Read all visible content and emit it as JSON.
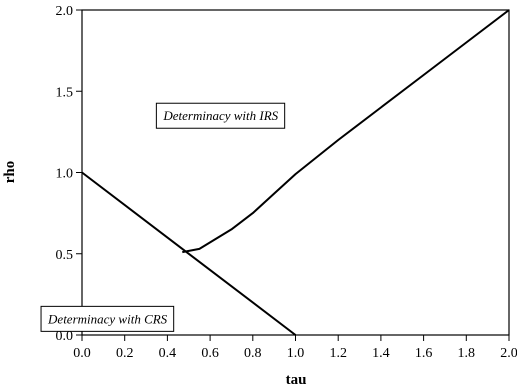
{
  "chart_data": {
    "type": "line",
    "title": "",
    "xlabel": "tau",
    "ylabel": "rho",
    "xlim": [
      0.0,
      2.0
    ],
    "ylim": [
      0.0,
      2.0
    ],
    "x_ticks": [
      "0.0",
      "0.2",
      "0.4",
      "0.6",
      "0.8",
      "1.0",
      "1.2",
      "1.4",
      "1.6",
      "1.8",
      "2.0"
    ],
    "y_ticks": [
      "0.0",
      "0.5",
      "1.0",
      "1.5",
      "2.0"
    ],
    "grid": false,
    "series": [
      {
        "values": [
          [
            0.0,
            1.0
          ],
          [
            0.5,
            0.5
          ],
          [
            1.0,
            0.0
          ]
        ]
      },
      {
        "values": [
          [
            0.47,
            0.51
          ],
          [
            0.55,
            0.53
          ],
          [
            0.7,
            0.65
          ],
          [
            0.8,
            0.75
          ],
          [
            0.9,
            0.87
          ],
          [
            1.0,
            0.99
          ],
          [
            1.2,
            1.2
          ],
          [
            1.4,
            1.4
          ],
          [
            1.6,
            1.6
          ],
          [
            1.8,
            1.8
          ],
          [
            2.0,
            2.0
          ]
        ]
      }
    ],
    "annotations": [
      {
        "text": "Determinacy with IRS",
        "x": 0.65,
        "y": 1.34
      },
      {
        "text": "Determinacy with CRS",
        "x": 0.12,
        "y": 0.09
      }
    ],
    "line_color": "#000000"
  }
}
